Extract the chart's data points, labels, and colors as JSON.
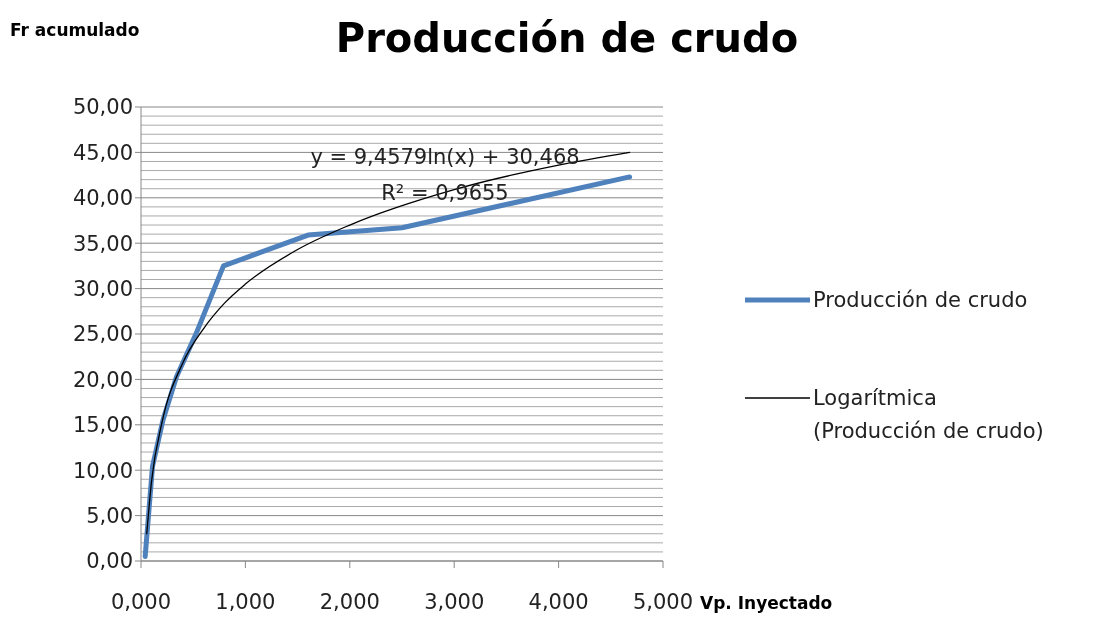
{
  "chart_data": {
    "type": "line",
    "title": "Producción de crudo",
    "xlabel": "Vp. Inyectado",
    "ylabel": "Fr acumulado",
    "xlim": [
      0,
      5
    ],
    "xticks": [
      {
        "value": 0,
        "label": "0,000"
      },
      {
        "value": 1,
        "label": "1,000"
      },
      {
        "value": 2,
        "label": "2,000"
      },
      {
        "value": 3,
        "label": "3,000"
      },
      {
        "value": 4,
        "label": "4,000"
      },
      {
        "value": 5,
        "label": "5,000"
      }
    ],
    "ylim": [
      0,
      50
    ],
    "yticks": [
      {
        "value": 0,
        "label": "0,00"
      },
      {
        "value": 1,
        "label": null
      },
      {
        "value": 2,
        "label": null
      },
      {
        "value": 3,
        "label": null
      },
      {
        "value": 4,
        "label": null
      },
      {
        "value": 5,
        "label": "5,00"
      },
      {
        "value": 6,
        "label": null
      },
      {
        "value": 7,
        "label": null
      },
      {
        "value": 8,
        "label": null
      },
      {
        "value": 9,
        "label": null
      },
      {
        "value": 10,
        "label": "10,00"
      },
      {
        "value": 11,
        "label": null
      },
      {
        "value": 12,
        "label": null
      },
      {
        "value": 13,
        "label": null
      },
      {
        "value": 14,
        "label": null
      },
      {
        "value": 15,
        "label": "15,00"
      },
      {
        "value": 16,
        "label": null
      },
      {
        "value": 17,
        "label": null
      },
      {
        "value": 18,
        "label": null
      },
      {
        "value": 19,
        "label": null
      },
      {
        "value": 20,
        "label": "20,00"
      },
      {
        "value": 21,
        "label": null
      },
      {
        "value": 22,
        "label": null
      },
      {
        "value": 23,
        "label": null
      },
      {
        "value": 24,
        "label": null
      },
      {
        "value": 25,
        "label": "25,00"
      },
      {
        "value": 26,
        "label": null
      },
      {
        "value": 27,
        "label": null
      },
      {
        "value": 28,
        "label": null
      },
      {
        "value": 29,
        "label": null
      },
      {
        "value": 30,
        "label": "30,00"
      },
      {
        "value": 31,
        "label": null
      },
      {
        "value": 32,
        "label": null
      },
      {
        "value": 33,
        "label": null
      },
      {
        "value": 34,
        "label": null
      },
      {
        "value": 35,
        "label": "35,00"
      },
      {
        "value": 36,
        "label": null
      },
      {
        "value": 37,
        "label": null
      },
      {
        "value": 38,
        "label": null
      },
      {
        "value": 39,
        "label": null
      },
      {
        "value": 40,
        "label": "40,00"
      },
      {
        "value": 41,
        "label": null
      },
      {
        "value": 42,
        "label": null
      },
      {
        "value": 43,
        "label": null
      },
      {
        "value": 44,
        "label": null
      },
      {
        "value": 45,
        "label": "45,00"
      },
      {
        "value": 46,
        "label": null
      },
      {
        "value": 47,
        "label": null
      },
      {
        "value": 48,
        "label": null
      },
      {
        "value": 49,
        "label": null
      },
      {
        "value": 50,
        "label": "50,00"
      }
    ],
    "grid": "y",
    "legend": "right",
    "marker": "none",
    "annotations": [
      "y = 9,4579ln(x) + 30,468",
      "R² = 0,9655"
    ],
    "series": [
      {
        "name": "Producción de crudo",
        "color": "#4f81bd",
        "x": [
          0.04,
          0.11,
          0.21,
          0.34,
          0.53,
          0.79,
          1.6,
          2.5,
          4.68
        ],
        "values": [
          0.5,
          10.4,
          15.5,
          20.3,
          25.1,
          32.5,
          35.9,
          36.7,
          42.3
        ]
      },
      {
        "name": "Logarítmica (Producción de crudo)",
        "color": "#000000",
        "x": [
          0.055,
          0.1,
          0.2,
          0.4,
          0.6,
          0.8,
          1.0,
          1.5,
          2,
          3,
          4,
          4.68
        ],
        "values": [
          3.0,
          8.7,
          15.2,
          21.8,
          25.6,
          28.4,
          30.5,
          34.3,
          37.0,
          40.9,
          43.6,
          45.0
        ]
      }
    ]
  }
}
